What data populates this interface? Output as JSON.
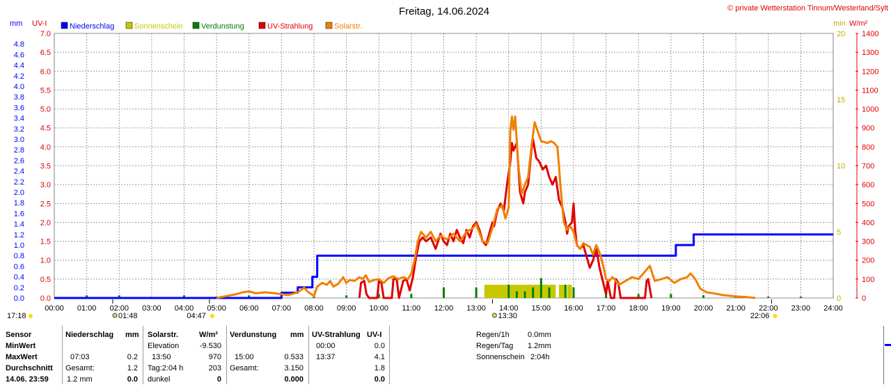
{
  "header": {
    "title": "Freitag, 14.06.2024",
    "copyright": "© private Wetterstation Tinnum/Westerland/Sylt"
  },
  "legend": [
    {
      "label": "Niederschlag",
      "color": "#0000ff"
    },
    {
      "label": "Sonnenschein",
      "color": "#c8c800"
    },
    {
      "label": "Verdunstung",
      "color": "#008000"
    },
    {
      "label": "UV-Strahlung",
      "color": "#e00000"
    },
    {
      "label": "Solarstr.",
      "color": "#f08000"
    }
  ],
  "axes": {
    "mm_unit": "mm",
    "uv_unit": "UV-I",
    "min_unit": "min",
    "wm2_unit": "W/m²",
    "mm_ticks": [
      "0.0",
      "0.2",
      "0.4",
      "0.6",
      "0.8",
      "1.0",
      "1.2",
      "1.4",
      "1.6",
      "1.8",
      "2.0",
      "2.2",
      "2.4",
      "2.6",
      "2.8",
      "3.0",
      "3.2",
      "3.4",
      "3.6",
      "3.8",
      "4.0",
      "4.2",
      "4.4",
      "4.6",
      "4.8"
    ],
    "uv_ticks": [
      "0.0",
      "0.5",
      "1.0",
      "1.5",
      "2.0",
      "2.5",
      "3.0",
      "3.5",
      "4.0",
      "4.5",
      "5.0",
      "5.5",
      "6.0",
      "6.5",
      "7.0"
    ],
    "min_ticks": [
      "0",
      "5",
      "10",
      "15",
      "20"
    ],
    "wm2_ticks": [
      "0",
      "100",
      "200",
      "300",
      "400",
      "500",
      "600",
      "700",
      "800",
      "900",
      "1000",
      "1100",
      "1200",
      "1300",
      "1400"
    ],
    "time_ticks": [
      "00:00",
      "01:00",
      "02:00",
      "03:00",
      "04:00",
      "05:00",
      "06:00",
      "07:00",
      "08:00",
      "09:00",
      "10:00",
      "11:00",
      "12:00",
      "13:00",
      "14:00",
      "15:00",
      "16:00",
      "17:00",
      "18:00",
      "19:00",
      "20:00",
      "21:00",
      "22:00",
      "23:00",
      "24:00"
    ]
  },
  "markers": {
    "moonset": "17:18",
    "moonrise": "01:48",
    "sunrise": "04:47",
    "solar_noon": "13:30",
    "sunset": "22:06"
  },
  "chart_data": {
    "type": "line",
    "title": "Freitag, 14.06.2024",
    "x_unit": "hour",
    "xlim": [
      0,
      24
    ],
    "series": [
      {
        "name": "Niederschlag",
        "axis": "mm",
        "ylim": [
          0,
          5.0
        ],
        "color": "#0000ff",
        "points": [
          [
            0,
            0
          ],
          [
            7.0,
            0
          ],
          [
            7.0,
            0.1
          ],
          [
            7.5,
            0.1
          ],
          [
            7.5,
            0.2
          ],
          [
            7.95,
            0.2
          ],
          [
            7.95,
            0.4
          ],
          [
            8.1,
            0.4
          ],
          [
            8.1,
            0.8
          ],
          [
            19.15,
            0.8
          ],
          [
            19.15,
            1.0
          ],
          [
            19.7,
            1.0
          ],
          [
            19.7,
            1.2
          ],
          [
            24,
            1.2
          ]
        ]
      },
      {
        "name": "UV-Strahlung",
        "axis": "uv",
        "ylim": [
          0,
          7.0
        ],
        "color": "#e00000",
        "points": [
          [
            9.4,
            0
          ],
          [
            9.45,
            0.4
          ],
          [
            9.55,
            0.45
          ],
          [
            9.62,
            0.1
          ],
          [
            9.7,
            0
          ],
          [
            9.95,
            0
          ],
          [
            10.0,
            0.45
          ],
          [
            10.08,
            0.4
          ],
          [
            10.15,
            0
          ],
          [
            10.4,
            0
          ],
          [
            10.45,
            0.5
          ],
          [
            10.55,
            0.5
          ],
          [
            10.62,
            0
          ],
          [
            10.75,
            0.45
          ],
          [
            10.85,
            0.5
          ],
          [
            10.95,
            0.2
          ],
          [
            11.05,
            0.55
          ],
          [
            11.15,
            1.1
          ],
          [
            11.25,
            1.5
          ],
          [
            11.35,
            1.6
          ],
          [
            11.45,
            1.5
          ],
          [
            11.6,
            1.6
          ],
          [
            11.75,
            1.3
          ],
          [
            11.9,
            1.7
          ],
          [
            12.0,
            1.5
          ],
          [
            12.1,
            1.4
          ],
          [
            12.2,
            1.7
          ],
          [
            12.3,
            1.5
          ],
          [
            12.4,
            1.8
          ],
          [
            12.5,
            1.6
          ],
          [
            12.6,
            1.45
          ],
          [
            12.7,
            1.8
          ],
          [
            12.8,
            1.6
          ],
          [
            12.9,
            1.9
          ],
          [
            13.0,
            2.0
          ],
          [
            13.1,
            1.8
          ],
          [
            13.2,
            1.5
          ],
          [
            13.3,
            1.4
          ],
          [
            13.4,
            1.7
          ],
          [
            13.5,
            2.0
          ],
          [
            13.55,
            1.9
          ],
          [
            13.65,
            2.3
          ],
          [
            13.75,
            2.5
          ],
          [
            13.85,
            2.3
          ],
          [
            13.95,
            3.0
          ],
          [
            14.05,
            3.6
          ],
          [
            14.1,
            4.1
          ],
          [
            14.15,
            3.9
          ],
          [
            14.25,
            4.1
          ],
          [
            14.35,
            2.8
          ],
          [
            14.45,
            2.5
          ],
          [
            14.5,
            2.8
          ],
          [
            14.6,
            3.0
          ],
          [
            14.7,
            3.9
          ],
          [
            14.75,
            4.2
          ],
          [
            14.85,
            3.7
          ],
          [
            14.95,
            3.6
          ],
          [
            15.05,
            3.4
          ],
          [
            15.15,
            3.5
          ],
          [
            15.25,
            3.2
          ],
          [
            15.35,
            3.0
          ],
          [
            15.45,
            3.2
          ],
          [
            15.55,
            2.6
          ],
          [
            15.65,
            2.4
          ],
          [
            15.75,
            2.0
          ],
          [
            15.8,
            1.7
          ],
          [
            15.85,
            1.9
          ],
          [
            15.95,
            2.0
          ],
          [
            16.0,
            2.5
          ],
          [
            16.05,
            1.8
          ],
          [
            16.1,
            1.4
          ],
          [
            16.2,
            1.3
          ],
          [
            16.3,
            1.4
          ],
          [
            16.4,
            1.1
          ],
          [
            16.5,
            0.8
          ],
          [
            16.6,
            1.0
          ],
          [
            16.7,
            1.3
          ],
          [
            16.8,
            0.8
          ],
          [
            16.9,
            0.45
          ],
          [
            17.0,
            0.1
          ],
          [
            17.05,
            0.45
          ],
          [
            17.15,
            0
          ],
          [
            17.25,
            0
          ],
          [
            17.3,
            0.5
          ],
          [
            17.38,
            0.4
          ],
          [
            17.45,
            0
          ],
          [
            18.2,
            0
          ],
          [
            18.25,
            0.45
          ],
          [
            18.3,
            0.5
          ],
          [
            18.4,
            0
          ]
        ]
      },
      {
        "name": "Solarstr.",
        "axis": "wm2",
        "ylim": [
          0,
          1400
        ],
        "color": "#f08000",
        "points": [
          [
            5.0,
            0
          ],
          [
            5.3,
            10
          ],
          [
            5.6,
            20
          ],
          [
            5.8,
            30
          ],
          [
            6.0,
            35
          ],
          [
            6.2,
            25
          ],
          [
            6.5,
            30
          ],
          [
            6.8,
            25
          ],
          [
            7.0,
            20
          ],
          [
            7.2,
            15
          ],
          [
            7.5,
            30
          ],
          [
            7.7,
            55
          ],
          [
            7.8,
            35
          ],
          [
            8.0,
            10
          ],
          [
            8.1,
            60
          ],
          [
            8.25,
            80
          ],
          [
            8.4,
            70
          ],
          [
            8.5,
            90
          ],
          [
            8.6,
            60
          ],
          [
            8.75,
            75
          ],
          [
            8.9,
            110
          ],
          [
            9.0,
            80
          ],
          [
            9.1,
            95
          ],
          [
            9.25,
            90
          ],
          [
            9.4,
            110
          ],
          [
            9.5,
            100
          ],
          [
            9.6,
            120
          ],
          [
            9.7,
            85
          ],
          [
            9.85,
            95
          ],
          [
            10.0,
            100
          ],
          [
            10.15,
            80
          ],
          [
            10.3,
            105
          ],
          [
            10.45,
            115
          ],
          [
            10.6,
            100
          ],
          [
            10.75,
            110
          ],
          [
            10.9,
            100
          ],
          [
            11.0,
            130
          ],
          [
            11.1,
            200
          ],
          [
            11.2,
            300
          ],
          [
            11.3,
            350
          ],
          [
            11.45,
            320
          ],
          [
            11.6,
            350
          ],
          [
            11.75,
            300
          ],
          [
            11.9,
            330
          ],
          [
            12.1,
            310
          ],
          [
            12.3,
            340
          ],
          [
            12.5,
            300
          ],
          [
            12.7,
            350
          ],
          [
            12.9,
            370
          ],
          [
            13.0,
            390
          ],
          [
            13.2,
            300
          ],
          [
            13.35,
            290
          ],
          [
            13.5,
            370
          ],
          [
            13.65,
            470
          ],
          [
            13.8,
            490
          ],
          [
            13.9,
            420
          ],
          [
            14.0,
            480
          ],
          [
            14.05,
            880
          ],
          [
            14.1,
            960
          ],
          [
            14.15,
            890
          ],
          [
            14.2,
            960
          ],
          [
            14.3,
            700
          ],
          [
            14.4,
            550
          ],
          [
            14.5,
            600
          ],
          [
            14.6,
            640
          ],
          [
            14.7,
            800
          ],
          [
            14.8,
            930
          ],
          [
            14.9,
            880
          ],
          [
            15.0,
            830
          ],
          [
            15.2,
            820
          ],
          [
            15.3,
            830
          ],
          [
            15.4,
            820
          ],
          [
            15.5,
            800
          ],
          [
            15.55,
            700
          ],
          [
            15.6,
            580
          ],
          [
            15.7,
            400
          ],
          [
            15.8,
            360
          ],
          [
            15.9,
            380
          ],
          [
            16.0,
            350
          ],
          [
            16.1,
            280
          ],
          [
            16.2,
            260
          ],
          [
            16.3,
            290
          ],
          [
            16.5,
            270
          ],
          [
            16.6,
            230
          ],
          [
            16.7,
            280
          ],
          [
            16.8,
            240
          ],
          [
            16.9,
            180
          ],
          [
            17.0,
            100
          ],
          [
            17.1,
            90
          ],
          [
            17.2,
            110
          ],
          [
            17.4,
            70
          ],
          [
            17.6,
            90
          ],
          [
            17.8,
            110
          ],
          [
            18.0,
            100
          ],
          [
            18.2,
            140
          ],
          [
            18.35,
            170
          ],
          [
            18.5,
            90
          ],
          [
            18.7,
            100
          ],
          [
            18.9,
            110
          ],
          [
            19.1,
            80
          ],
          [
            19.3,
            100
          ],
          [
            19.5,
            110
          ],
          [
            19.6,
            130
          ],
          [
            19.75,
            100
          ],
          [
            19.9,
            50
          ],
          [
            20.1,
            30
          ],
          [
            20.3,
            25
          ],
          [
            20.6,
            15
          ],
          [
            21.0,
            8
          ],
          [
            21.3,
            5
          ],
          [
            21.6,
            0
          ]
        ]
      },
      {
        "name": "Sonnenschein",
        "axis": "min",
        "ylim": [
          0,
          20
        ],
        "color": "#c8c800",
        "type": "bar",
        "bars": [
          [
            13.25,
            14.45,
            1.0
          ],
          [
            14.45,
            15.45,
            1.0
          ],
          [
            15.55,
            15.75,
            1.0
          ],
          [
            15.8,
            15.95,
            1.0
          ]
        ]
      },
      {
        "name": "Verdunstung",
        "axis": "min",
        "ylim": [
          0,
          20
        ],
        "color": "#008000",
        "type": "bar",
        "bars": [
          [
            1.0,
            1.0,
            0.2
          ],
          [
            2.0,
            2.0,
            0.2
          ],
          [
            4.0,
            4.0,
            0.2
          ],
          [
            5.0,
            5.0,
            0.1
          ],
          [
            6.0,
            6.0,
            0.2
          ],
          [
            7.0,
            7.0,
            0.25
          ],
          [
            8.0,
            8.0,
            0.2
          ],
          [
            9.0,
            9.0,
            0.2
          ],
          [
            10.0,
            10.0,
            0.3
          ],
          [
            11.0,
            11.0,
            0.3
          ],
          [
            12.0,
            12.0,
            0.8
          ],
          [
            13.0,
            13.0,
            0.8
          ],
          [
            14.0,
            14.0,
            1.0
          ],
          [
            14.25,
            14.25,
            0.5
          ],
          [
            14.5,
            14.5,
            0.5
          ],
          [
            14.75,
            14.75,
            0.8
          ],
          [
            15.0,
            15.0,
            1.5
          ],
          [
            15.25,
            15.25,
            0.8
          ],
          [
            15.75,
            15.75,
            1.0
          ],
          [
            16.0,
            16.0,
            0.8
          ],
          [
            17.0,
            17.0,
            0.5
          ],
          [
            18.0,
            18.0,
            0.3
          ],
          [
            19.0,
            19.0,
            0.3
          ],
          [
            20.0,
            20.0,
            0.2
          ],
          [
            21.0,
            21.0,
            0.15
          ],
          [
            22.0,
            22.0,
            0.1
          ],
          [
            23.0,
            23.0,
            0.1
          ]
        ]
      }
    ]
  },
  "stats": {
    "header_sensor": "Sensor",
    "header_niederschlag": "Niederschlag",
    "header_mm1": "mm",
    "header_solar": "Solarstr.",
    "header_wm2": "W/m²",
    "header_verdunstung": "Verdunstung",
    "header_mm2": "mm",
    "header_uv": "UV-Strahlung",
    "header_uvi": "UV-I",
    "row_min": "MinWert",
    "row_max": "MaxWert",
    "row_avg": "Durchschnitt",
    "row_date": "14.06. 23:59",
    "elevation_label": "Elevation",
    "elevation_value": "-9.530",
    "uv_min_time": "00:00",
    "uv_min_value": "0.0",
    "nied_max_time": "07:03",
    "nied_max_value": "0.2",
    "solar_max_time": "13:50",
    "solar_max_value": "970",
    "verd_max_time": "15:00",
    "verd_max_value": "0.533",
    "uv_max_time": "13:37",
    "uv_max_value": "4.1",
    "nied_gesamt_label": "Gesamt:",
    "nied_gesamt_value": "1.2",
    "solar_tag_label": "Tag:2:04 h",
    "solar_tag_value": "203",
    "verd_gesamt_label": "Gesamt:",
    "verd_gesamt_value": "3.150",
    "uv_avg_value": "1.8",
    "nied_last_label": "1.2 mm",
    "nied_last_value": "0.0",
    "solar_last_label": "dunkel",
    "solar_last_value": "0",
    "verd_last_value": "0.000",
    "uv_last_value": "0.0",
    "regen_1h_label": "Regen/1h",
    "regen_1h_value": "0.0mm",
    "regen_tag_label": "Regen/Tag",
    "regen_tag_value": "1.2mm",
    "sonnenschein_label": "Sonnenschein",
    "sonnenschein_value": "2:04h"
  }
}
